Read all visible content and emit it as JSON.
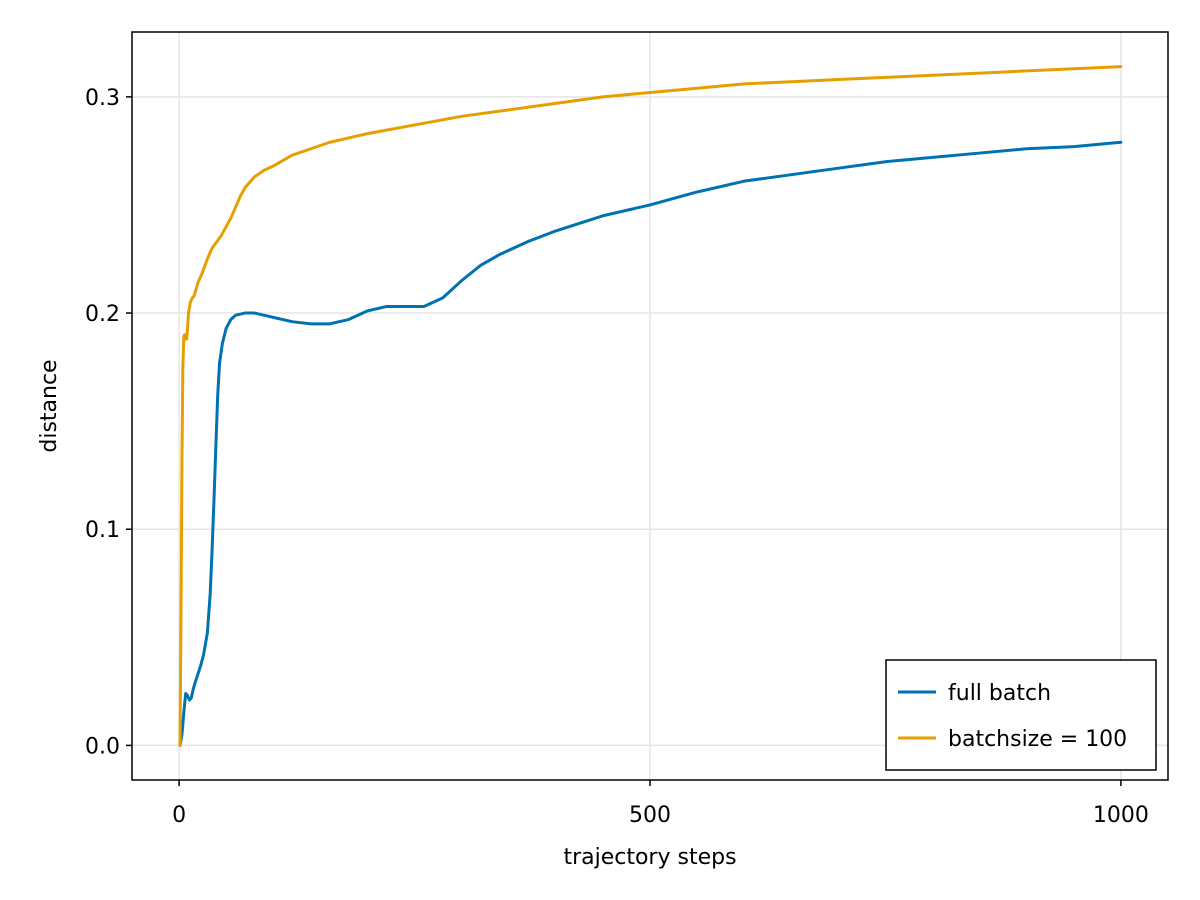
{
  "chart_data": {
    "type": "line",
    "title": "",
    "xlabel": "trajectory steps",
    "ylabel": "distance",
    "xlim": [
      -50,
      1050
    ],
    "ylim": [
      -0.016,
      0.33
    ],
    "xticks": [
      0,
      500,
      1000
    ],
    "xtick_labels": [
      "0",
      "500",
      "1000"
    ],
    "yticks": [
      0.0,
      0.1,
      0.2,
      0.3
    ],
    "ytick_labels": [
      "0.0",
      "0.1",
      "0.2",
      "0.3"
    ],
    "grid": true,
    "legend_position": "bottom-right",
    "series": [
      {
        "name": "full batch",
        "color": "#0072b2",
        "x": [
          1,
          3,
          5,
          7,
          9,
          11,
          13,
          15,
          17,
          20,
          23,
          26,
          30,
          33,
          35,
          37,
          39,
          41,
          43,
          46,
          50,
          55,
          60,
          70,
          80,
          90,
          100,
          120,
          140,
          160,
          180,
          200,
          220,
          240,
          260,
          280,
          300,
          320,
          340,
          370,
          400,
          450,
          500,
          550,
          600,
          650,
          700,
          750,
          800,
          850,
          900,
          950,
          1000
        ],
        "y": [
          0.0,
          0.005,
          0.015,
          0.024,
          0.023,
          0.021,
          0.022,
          0.026,
          0.029,
          0.033,
          0.037,
          0.042,
          0.052,
          0.07,
          0.09,
          0.113,
          0.138,
          0.162,
          0.177,
          0.186,
          0.193,
          0.197,
          0.199,
          0.2,
          0.2,
          0.199,
          0.198,
          0.196,
          0.195,
          0.195,
          0.197,
          0.201,
          0.203,
          0.203,
          0.203,
          0.207,
          0.215,
          0.222,
          0.227,
          0.233,
          0.238,
          0.245,
          0.25,
          0.256,
          0.261,
          0.264,
          0.267,
          0.27,
          0.272,
          0.274,
          0.276,
          0.277,
          0.279
        ]
      },
      {
        "name": "batchsize = 100",
        "color": "#e69f00",
        "x": [
          1,
          2,
          3,
          4,
          5,
          6,
          7,
          8,
          9,
          10,
          12,
          14,
          16,
          18,
          20,
          25,
          30,
          35,
          40,
          45,
          50,
          55,
          60,
          65,
          70,
          80,
          90,
          100,
          120,
          140,
          160,
          180,
          200,
          250,
          300,
          350,
          400,
          450,
          500,
          550,
          600,
          650,
          700,
          750,
          800,
          850,
          900,
          950,
          1000
        ],
        "y": [
          0.0,
          0.06,
          0.13,
          0.175,
          0.189,
          0.19,
          0.188,
          0.188,
          0.193,
          0.2,
          0.205,
          0.207,
          0.208,
          0.211,
          0.214,
          0.219,
          0.225,
          0.23,
          0.233,
          0.236,
          0.24,
          0.244,
          0.249,
          0.254,
          0.258,
          0.263,
          0.266,
          0.268,
          0.273,
          0.276,
          0.279,
          0.281,
          0.283,
          0.287,
          0.291,
          0.294,
          0.297,
          0.3,
          0.302,
          0.304,
          0.306,
          0.307,
          0.308,
          0.309,
          0.31,
          0.311,
          0.312,
          0.313,
          0.314
        ]
      }
    ]
  }
}
